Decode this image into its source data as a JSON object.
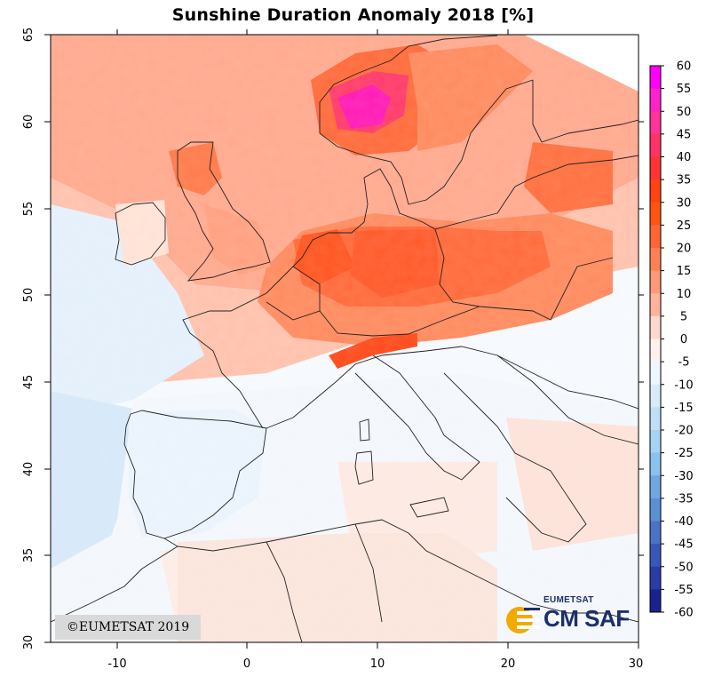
{
  "map": {
    "title": "Sunshine Duration Anomaly 2018 [%]",
    "x_ticks": [
      "-10",
      "0",
      "10",
      "20",
      "30"
    ],
    "y_ticks": [
      "30",
      "35",
      "40",
      "45",
      "50",
      "55",
      "60",
      "65"
    ],
    "x_range": [
      -15,
      30
    ],
    "y_range": [
      30,
      65
    ]
  },
  "legend": {
    "labels": [
      "60",
      "55",
      "50",
      "45",
      "40",
      "35",
      "30",
      "25",
      "20",
      "15",
      "10",
      "5",
      "0",
      "-5",
      "-10",
      "-15",
      "-20",
      "-25",
      "-30",
      "-35",
      "-40",
      "-45",
      "-50",
      "-55",
      "-60"
    ],
    "colors": [
      "#ff00ff",
      "#ff22cc",
      "#ff3399",
      "#ff3366",
      "#ff3333",
      "#ff4411",
      "#ff5511",
      "#ff6633",
      "#ff8055",
      "#ff9977",
      "#ffb39c",
      "#ffd9cc",
      "#fff2ee",
      "#eef6ff",
      "#d8ebfb",
      "#c0dff7",
      "#a6d2f3",
      "#8ac2ed",
      "#6ea8e2",
      "#5a8fd6",
      "#4a73c8",
      "#3a57b8",
      "#2a3ca6",
      "#1a2290",
      "#000080"
    ]
  },
  "copyright": "©EUMETSAT 2019",
  "logo": {
    "top": "EUMETSAT",
    "main": "CM SAF"
  }
}
